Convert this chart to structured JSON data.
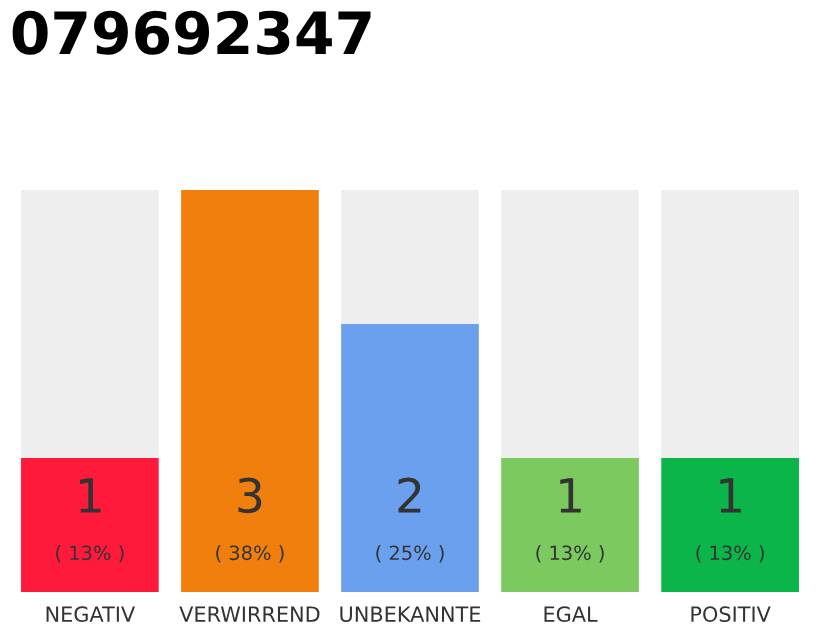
{
  "chart_data": {
    "type": "bar",
    "title": "079692347",
    "categories": [
      "NEGATIV",
      "VERWIRREND",
      "UNBEKANNTE",
      "EGAL",
      "POSITIV"
    ],
    "values": [
      1,
      3,
      2,
      1,
      1
    ],
    "colors": [
      "#ff1a3c",
      "#f07f0e",
      "#6aa0ee",
      "#7bc95f",
      "#0bb54a"
    ],
    "data_labels": true,
    "grid": false,
    "legend": false,
    "annotations": [
      "( 13% )",
      "( 38% )",
      "( 25% )",
      "( 13% )",
      "( 13% )"
    ]
  }
}
